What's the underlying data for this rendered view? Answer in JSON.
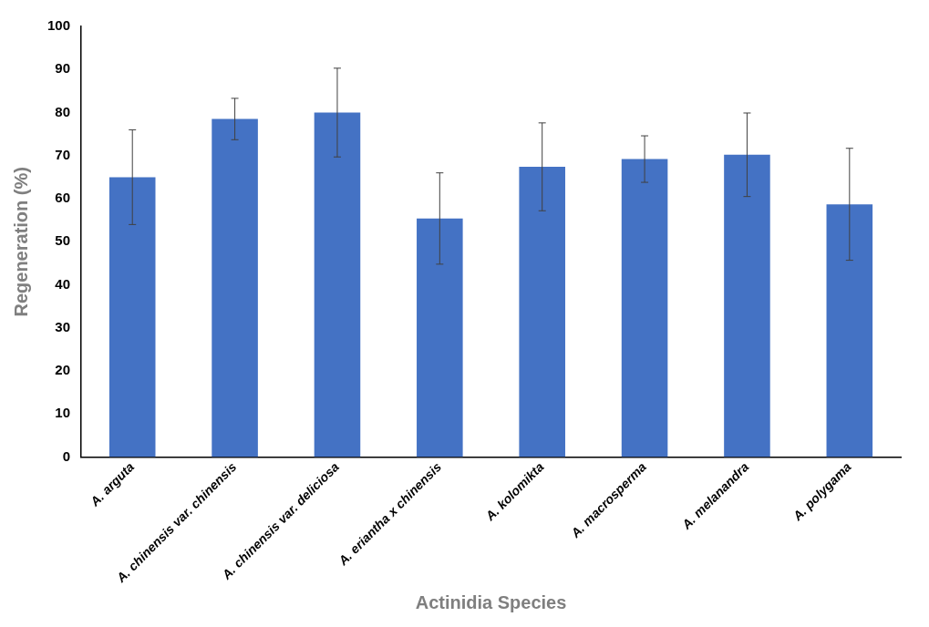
{
  "chart_data": {
    "type": "bar",
    "xlabel": "Actinidia Species",
    "ylabel": "Regeneration (%)",
    "categories": [
      "A. arguta",
      "A. chinensis var. chinensis",
      "A. chinensis var. deliciosa",
      "A. eriantha x chinensis",
      "A. kolomikta",
      "A. macrosperma",
      "A. melanandra",
      "A. polygama"
    ],
    "values": [
      65,
      78.5,
      80,
      55.4,
      67.4,
      69.2,
      70.2,
      58.7
    ],
    "errors": [
      11,
      4.8,
      10.3,
      10.6,
      10.2,
      5.4,
      9.7,
      13
    ],
    "color": "#4472c4",
    "ylim": [
      0,
      100
    ],
    "yticks": [
      0,
      10,
      20,
      30,
      40,
      50,
      60,
      70,
      80,
      90,
      100
    ],
    "grid": false,
    "legend": false
  }
}
